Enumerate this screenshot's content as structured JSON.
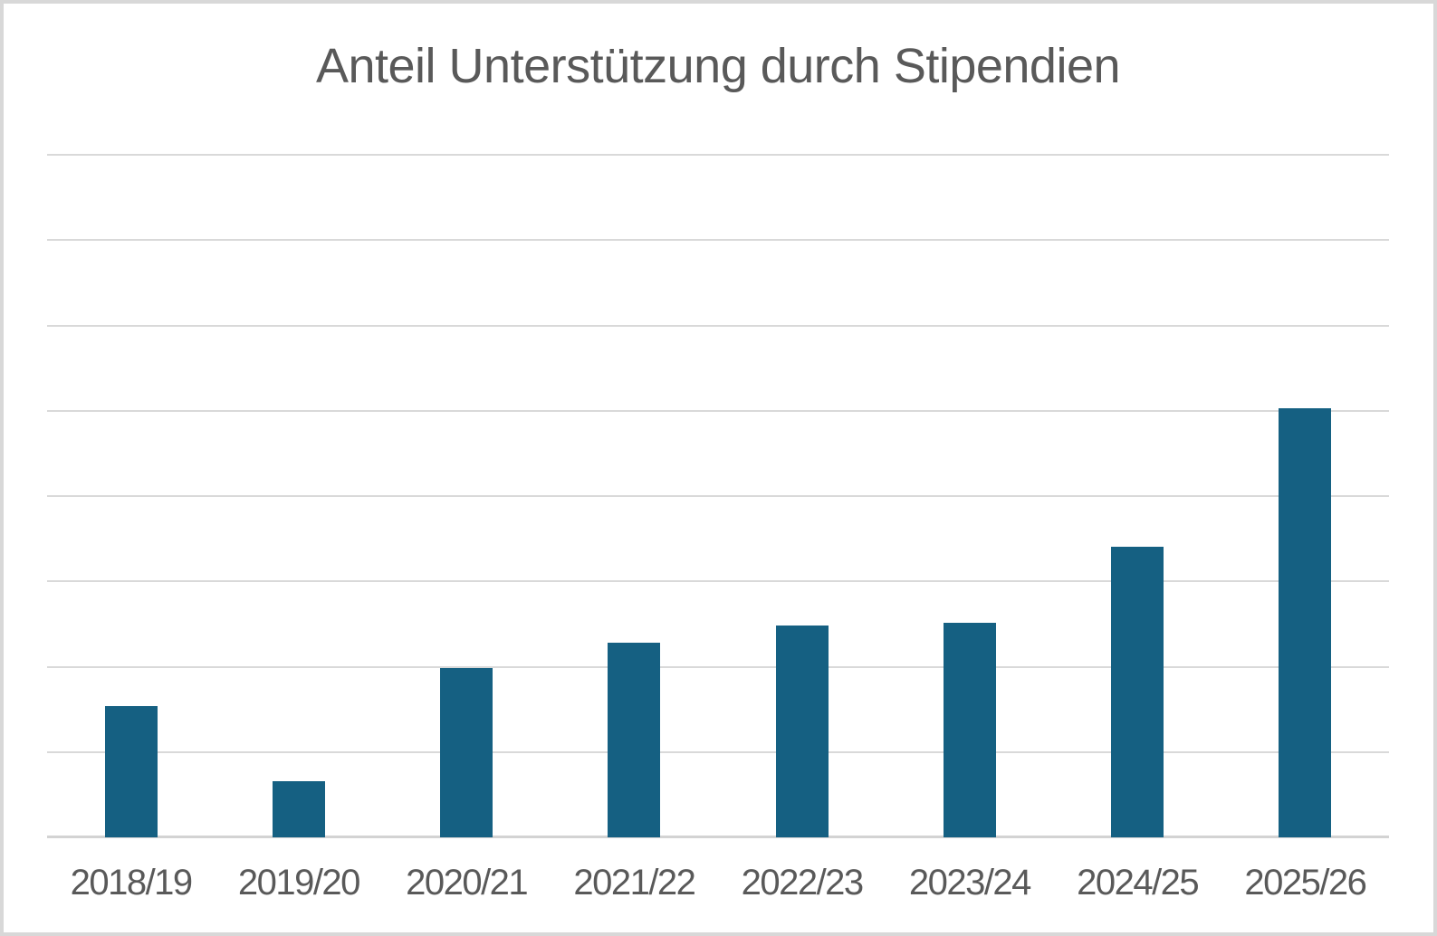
{
  "chart_data": {
    "type": "bar",
    "title": "Anteil Unterstützung durch Stipendien",
    "categories": [
      "2018/19",
      "2019/20",
      "2020/21",
      "2021/22",
      "2022/23",
      "2023/24",
      "2024/25",
      "2025/26"
    ],
    "values": [
      1.54,
      0.66,
      1.98,
      2.28,
      2.48,
      2.51,
      3.41,
      5.03
    ],
    "xlabel": "",
    "ylabel": "",
    "ylim": [
      0,
      8
    ],
    "y_gridline_step": 1,
    "y_tick_labels_visible": false,
    "y_axis_unit": "gridline intervals (no numeric labels shown on chart)",
    "grid": true,
    "legend": false,
    "bar_color": "#156082"
  },
  "colors": {
    "bar": "#156082",
    "gridline": "#d9d9d9",
    "axis_line": "#d3d3d3",
    "text": "#595959",
    "frame_border": "#d8d8d8",
    "background": "#ffffff"
  }
}
